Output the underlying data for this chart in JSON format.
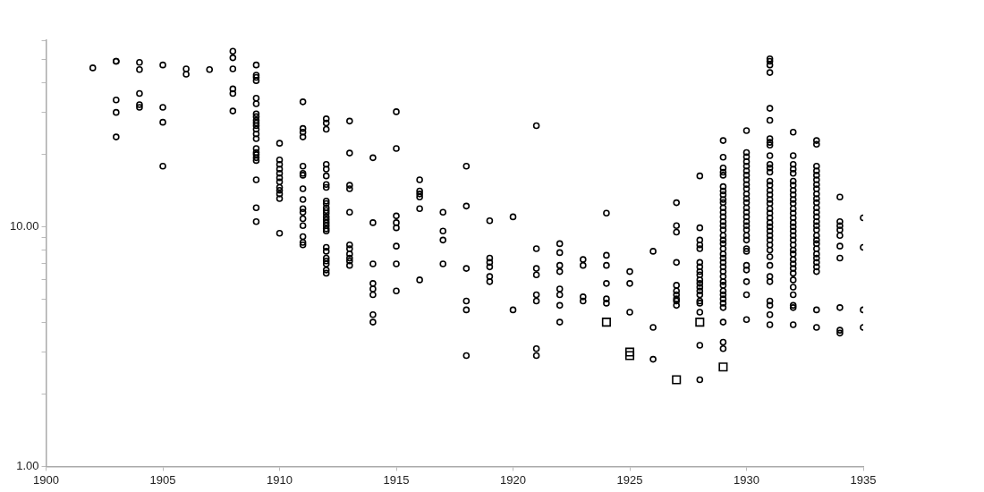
{
  "chart_data": {
    "type": "scatter",
    "log": "y",
    "grid": false,
    "xlim": [
      1900,
      1935
    ],
    "xticks": [
      1900,
      1905,
      1910,
      1915,
      1920,
      1925,
      1930,
      1935
    ],
    "ylim": [
      1,
      60
    ],
    "yticks": [
      {
        "value": 1,
        "label": "1.00"
      },
      {
        "value": 2,
        "label": null
      },
      {
        "value": 3,
        "label": null
      },
      {
        "value": 4,
        "label": null
      },
      {
        "value": 5,
        "label": null
      },
      {
        "value": 6,
        "label": null
      },
      {
        "value": 7,
        "label": null
      },
      {
        "value": 8,
        "label": null
      },
      {
        "value": 9,
        "label": null
      },
      {
        "value": 10,
        "label": "10.00"
      },
      {
        "value": 20,
        "label": null
      },
      {
        "value": 30,
        "label": null
      },
      {
        "value": 40,
        "label": null
      },
      {
        "value": 50,
        "label": null
      },
      {
        "value": 60,
        "label": null
      }
    ],
    "series": [
      {
        "color": "#000000",
        "marker": "circle",
        "x": [
          1902,
          1903,
          1903,
          1903,
          1903,
          1903,
          1904,
          1904,
          1904,
          1904,
          1904,
          1905,
          1905,
          1905,
          1905,
          1906,
          1906,
          1907,
          1908,
          1908,
          1908,
          1908,
          1908,
          1908,
          1909,
          1909,
          1909,
          1909,
          1909,
          1909,
          1909,
          1909,
          1909,
          1909,
          1909,
          1909,
          1909,
          1909,
          1909,
          1909,
          1909,
          1909,
          1909,
          1909,
          1909,
          1909,
          1910,
          1910,
          1910,
          1910,
          1910,
          1910,
          1910,
          1910,
          1910,
          1910,
          1910,
          1910,
          1911,
          1911,
          1911,
          1911,
          1911,
          1911,
          1911,
          1911,
          1911,
          1911,
          1911,
          1911,
          1911,
          1911,
          1911,
          1911,
          1912,
          1912,
          1912,
          1912,
          1912,
          1912,
          1912,
          1912,
          1912,
          1912,
          1912,
          1912,
          1912,
          1912,
          1912,
          1912,
          1912,
          1912,
          1912,
          1912,
          1912,
          1912,
          1912,
          1912,
          1912,
          1912,
          1913,
          1913,
          1913,
          1913,
          1913,
          1913,
          1913,
          1913,
          1913,
          1913,
          1913,
          1914,
          1914,
          1914,
          1914,
          1914,
          1914,
          1914,
          1914,
          1915,
          1915,
          1915,
          1915,
          1915,
          1915,
          1915,
          1915,
          1916,
          1916,
          1916,
          1916,
          1916,
          1916,
          1917,
          1917,
          1917,
          1917,
          1918,
          1918,
          1918,
          1918,
          1918,
          1918,
          1919,
          1919,
          1919,
          1919,
          1919,
          1919,
          1920,
          1920,
          1921,
          1921,
          1921,
          1921,
          1921,
          1921,
          1921,
          1921,
          1922,
          1922,
          1922,
          1922,
          1922,
          1922,
          1922,
          1922,
          1923,
          1923,
          1923,
          1923,
          1924,
          1924,
          1924,
          1924,
          1924,
          1924,
          1925,
          1925,
          1925,
          1926,
          1926,
          1926,
          1927,
          1927,
          1927,
          1927,
          1927,
          1927,
          1927,
          1927,
          1927,
          1927,
          1928,
          1928,
          1928,
          1928,
          1928,
          1928,
          1928,
          1928,
          1928,
          1928,
          1928,
          1928,
          1928,
          1928,
          1928,
          1928,
          1928,
          1928,
          1928,
          1929,
          1929,
          1929,
          1929,
          1929,
          1929,
          1929,
          1929,
          1929,
          1929,
          1929,
          1929,
          1929,
          1929,
          1929,
          1929,
          1929,
          1929,
          1929,
          1929,
          1929,
          1929,
          1929,
          1929,
          1929,
          1929,
          1929,
          1929,
          1929,
          1929,
          1929,
          1929,
          1929,
          1929,
          1929,
          1929,
          1930,
          1930,
          1930,
          1930,
          1930,
          1930,
          1930,
          1930,
          1930,
          1930,
          1930,
          1930,
          1930,
          1930,
          1930,
          1930,
          1930,
          1930,
          1930,
          1930,
          1930,
          1930,
          1930,
          1930,
          1930,
          1930,
          1930,
          1930,
          1931,
          1931,
          1931,
          1931,
          1931,
          1931,
          1931,
          1931,
          1931,
          1931,
          1931,
          1931,
          1931,
          1931,
          1931,
          1931,
          1931,
          1931,
          1931,
          1931,
          1931,
          1931,
          1931,
          1931,
          1931,
          1931,
          1931,
          1931,
          1931,
          1931,
          1931,
          1931,
          1931,
          1931,
          1931,
          1931,
          1931,
          1932,
          1932,
          1932,
          1932,
          1932,
          1932,
          1932,
          1932,
          1932,
          1932,
          1932,
          1932,
          1932,
          1932,
          1932,
          1932,
          1932,
          1932,
          1932,
          1932,
          1932,
          1932,
          1932,
          1932,
          1932,
          1932,
          1932,
          1932,
          1932,
          1932,
          1932,
          1932,
          1933,
          1933,
          1933,
          1933,
          1933,
          1933,
          1933,
          1933,
          1933,
          1933,
          1933,
          1933,
          1933,
          1933,
          1933,
          1933,
          1933,
          1933,
          1933,
          1933,
          1933,
          1933,
          1933,
          1933,
          1933,
          1933,
          1933,
          1933,
          1934,
          1934,
          1934,
          1934,
          1934,
          1934,
          1934,
          1934,
          1934,
          1934,
          1935,
          1935,
          1935,
          1935
        ],
        "values": [
          46,
          49,
          49,
          33.8,
          30,
          23.7,
          48.5,
          45.3,
          36,
          32.3,
          31.5,
          47.3,
          31.5,
          27.3,
          17.9,
          45.6,
          43.3,
          45.3,
          54,
          50.7,
          45.6,
          37.6,
          36,
          30.4,
          47.3,
          42.9,
          42,
          40.7,
          34.4,
          32.6,
          29.6,
          28.8,
          27.8,
          27.1,
          26.4,
          25.5,
          24.4,
          23.3,
          21.2,
          20.4,
          20,
          19.4,
          18.9,
          15.7,
          12,
          10.5,
          22.3,
          19,
          18.2,
          17.4,
          16.7,
          16,
          15.4,
          14.6,
          14.2,
          13.7,
          13.1,
          9.4,
          33.2,
          25.7,
          24.8,
          23.7,
          17.9,
          16.7,
          16.4,
          14.4,
          13,
          11.9,
          11.5,
          10.8,
          10.1,
          9.1,
          8.6,
          8.4,
          28.2,
          27.1,
          25.5,
          18.2,
          17.4,
          16.3,
          15,
          14.6,
          12.8,
          12.5,
          12,
          11.7,
          11.4,
          11,
          10.7,
          10.4,
          10.1,
          9.8,
          9.6,
          8.2,
          7.9,
          7.4,
          7.2,
          7,
          6.6,
          6.4,
          27.6,
          20.3,
          14.9,
          14.4,
          11.5,
          8.4,
          8.1,
          7.7,
          7.4,
          7.2,
          6.9,
          19.4,
          10.4,
          7,
          5.8,
          5.5,
          5.2,
          4.3,
          4,
          30.2,
          21.2,
          11.1,
          10.4,
          9.9,
          8.3,
          7,
          5.4,
          15.7,
          14.1,
          13.7,
          13.3,
          11.9,
          6,
          11.5,
          9.6,
          8.8,
          7,
          17.9,
          12.2,
          6.7,
          4.9,
          4.5,
          2.9,
          10.6,
          7.4,
          7.1,
          6.8,
          6.2,
          5.9,
          11,
          4.5,
          26.4,
          8.1,
          6.7,
          6.3,
          5.2,
          4.9,
          3.1,
          2.9,
          8.5,
          7.8,
          6.9,
          6.5,
          5.5,
          5.2,
          4.7,
          4,
          7.3,
          6.9,
          5.1,
          4.9,
          11.4,
          7.6,
          6.9,
          5.8,
          5,
          4.8,
          6.5,
          5.8,
          4.4,
          7.9,
          3.8,
          2.8,
          12.6,
          10.1,
          9.5,
          7.1,
          5.7,
          5.4,
          5.2,
          5,
          4.9,
          4.7,
          16.3,
          9.9,
          8.8,
          8.4,
          8.1,
          7.1,
          6.8,
          6.5,
          6.3,
          6,
          5.8,
          5.6,
          5.4,
          5.2,
          4.9,
          4.8,
          4.4,
          3.2,
          2.3,
          22.9,
          19.5,
          17.6,
          16.9,
          16.4,
          14.7,
          14.1,
          13.6,
          13,
          12.6,
          12,
          11.5,
          11,
          10.5,
          10.1,
          9.7,
          9.2,
          8.8,
          8.5,
          8.1,
          7.7,
          7.4,
          7.1,
          6.8,
          6.5,
          6.2,
          5.9,
          5.7,
          5.4,
          5.2,
          5,
          4.8,
          4.6,
          4,
          3.3,
          3.1,
          25.2,
          20.4,
          19.6,
          18.7,
          17.9,
          17.1,
          16.4,
          15.7,
          15,
          14.4,
          13.7,
          13.1,
          12.6,
          12,
          11.5,
          11,
          10.5,
          10.1,
          9.7,
          9.2,
          8.8,
          8.1,
          7.9,
          6.9,
          6.6,
          5.9,
          5.2,
          4.1,
          50.2,
          49,
          47.3,
          44,
          31.2,
          27.8,
          23.3,
          22.5,
          21.9,
          19.8,
          18.2,
          17.6,
          16.9,
          15.5,
          14.9,
          14.2,
          13.6,
          13,
          12.5,
          11.9,
          11.4,
          10.9,
          10.4,
          10,
          9.6,
          9.2,
          8.8,
          8.4,
          8,
          7.5,
          6.9,
          6.2,
          5.9,
          4.9,
          4.7,
          4.3,
          3.9,
          24.8,
          19.8,
          18.2,
          17.4,
          16.7,
          15.5,
          14.9,
          14.2,
          13.6,
          13,
          12.5,
          11.9,
          11.4,
          10.9,
          10.4,
          10,
          9.6,
          9.2,
          8.8,
          8.4,
          8,
          7.7,
          7.3,
          7,
          6.7,
          6.4,
          6,
          5.6,
          5.2,
          4.7,
          4.6,
          3.9,
          22.9,
          22.1,
          17.9,
          17.1,
          16.4,
          15.7,
          15,
          14.4,
          13.7,
          13.1,
          12.6,
          12,
          11.5,
          11,
          10.5,
          10.1,
          9.7,
          9.2,
          8.8,
          8.5,
          8.1,
          7.7,
          7.4,
          7.1,
          6.8,
          6.5,
          4.5,
          3.8,
          13.3,
          10.5,
          10.1,
          9.7,
          9.2,
          8.3,
          7.4,
          4.6,
          3.7,
          3.6,
          10.9,
          8.2,
          4.5,
          3.8
        ]
      },
      {
        "color": "#000000",
        "marker": "square",
        "x": [
          1924,
          1925,
          1925,
          1927,
          1928,
          1929
        ],
        "values": [
          4,
          3,
          2.9,
          2.3,
          4,
          2.6
        ]
      }
    ]
  }
}
